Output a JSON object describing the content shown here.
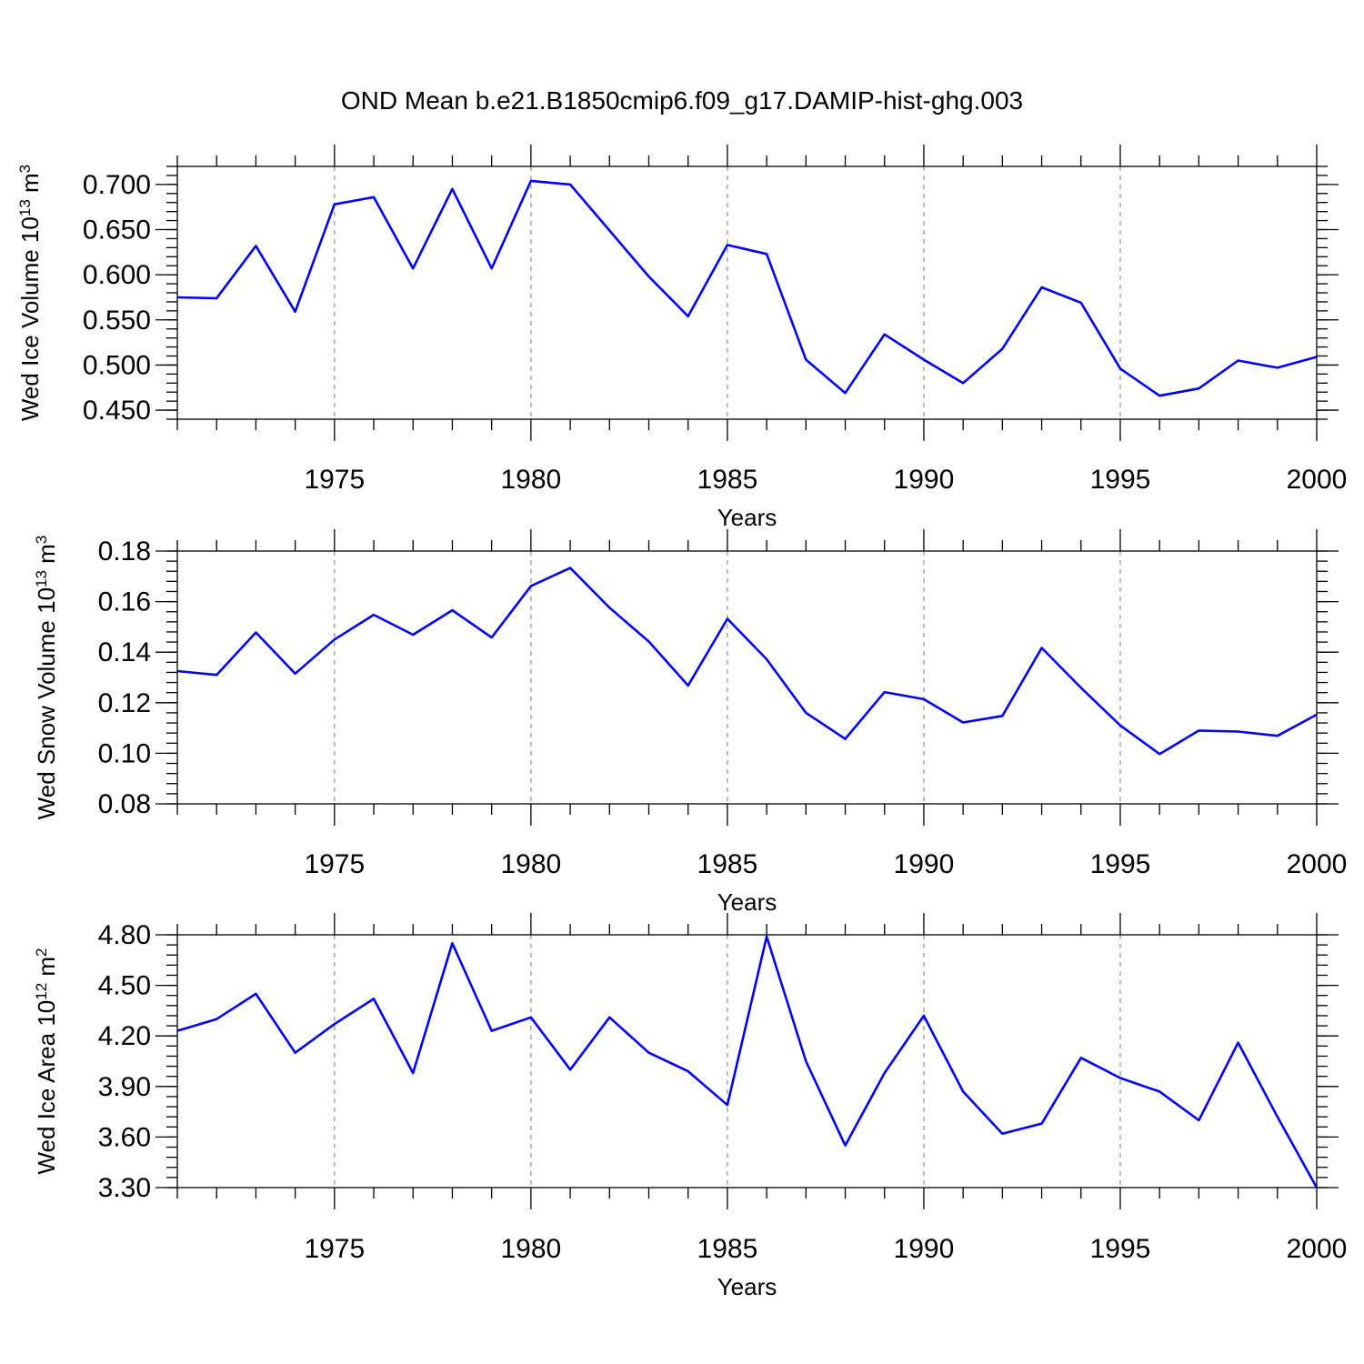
{
  "title": "OND Mean b.e21.B1850cmip6.f09_g17.DAMIP-hist-ghg.003",
  "chart_data": [
    {
      "type": "line",
      "ylabel": "Wed Ice Volume 10",
      "ylabel_exp": "13",
      "ylabel_unit": " m",
      "ylabel_unit_exp": "3",
      "xlabel": "Years",
      "xlim": [
        1971,
        2000
      ],
      "ylim": [
        0.44,
        0.72
      ],
      "yticks": [
        0.45,
        0.5,
        0.55,
        0.6,
        0.65,
        0.7
      ],
      "ytick_labels": [
        "0.450",
        "0.500",
        "0.550",
        "0.600",
        "0.650",
        "0.700"
      ],
      "xticks": [
        1975,
        1980,
        1985,
        1990,
        1995,
        2000
      ],
      "xtick_labels": [
        "1975",
        "1980",
        "1985",
        "1990",
        "1995",
        "2000"
      ],
      "grid": "x dashed",
      "color": "#0000ff",
      "x": [
        1971,
        1972,
        1973,
        1974,
        1975,
        1976,
        1977,
        1978,
        1979,
        1980,
        1981,
        1982,
        1983,
        1984,
        1985,
        1986,
        1987,
        1988,
        1989,
        1990,
        1991,
        1992,
        1993,
        1994,
        1995,
        1996,
        1997,
        1998,
        1999,
        2000
      ],
      "y": [
        0.575,
        0.574,
        0.632,
        0.559,
        0.678,
        0.686,
        0.607,
        0.695,
        0.607,
        0.704,
        0.7,
        0.649,
        0.598,
        0.554,
        0.633,
        0.623,
        0.506,
        0.469,
        0.534,
        0.506,
        0.48,
        0.518,
        0.586,
        0.569,
        0.496,
        0.466,
        0.474,
        0.505,
        0.497,
        0.509
      ]
    },
    {
      "type": "line",
      "ylabel": "Wed Snow Volume 10",
      "ylabel_exp": "13",
      "ylabel_unit": " m",
      "ylabel_unit_exp": "3",
      "xlabel": "Years",
      "xlim": [
        1971,
        2000
      ],
      "ylim": [
        0.08,
        0.18
      ],
      "yticks": [
        0.08,
        0.1,
        0.12,
        0.14,
        0.16,
        0.18
      ],
      "ytick_labels": [
        "0.08",
        "0.10",
        "0.12",
        "0.14",
        "0.16",
        "0.18"
      ],
      "xticks": [
        1975,
        1980,
        1985,
        1990,
        1995,
        2000
      ],
      "xtick_labels": [
        "1975",
        "1980",
        "1985",
        "1990",
        "1995",
        "2000"
      ],
      "grid": "x dashed",
      "color": "#0000ff",
      "x": [
        1971,
        1972,
        1973,
        1974,
        1975,
        1976,
        1977,
        1978,
        1979,
        1980,
        1981,
        1982,
        1983,
        1984,
        1985,
        1986,
        1987,
        1988,
        1989,
        1990,
        1991,
        1992,
        1993,
        1994,
        1995,
        1996,
        1997,
        1998,
        1999,
        2000
      ],
      "y": [
        0.1325,
        0.131,
        0.1478,
        0.1315,
        0.145,
        0.1548,
        0.1469,
        0.1566,
        0.1458,
        0.1662,
        0.1733,
        0.1576,
        0.1442,
        0.1268,
        0.1532,
        0.1372,
        0.116,
        0.1057,
        0.1242,
        0.1214,
        0.1122,
        0.1148,
        0.1417,
        0.1259,
        0.111,
        0.0997,
        0.109,
        0.1086,
        0.1069,
        0.1153
      ]
    },
    {
      "type": "line",
      "ylabel": "Wed Ice Area 10",
      "ylabel_exp": "12",
      "ylabel_unit": " m",
      "ylabel_unit_exp": "2",
      "xlabel": "Years",
      "xlim": [
        1971,
        2000
      ],
      "ylim": [
        3.3,
        4.8
      ],
      "yticks": [
        3.3,
        3.6,
        3.9,
        4.2,
        4.5,
        4.8
      ],
      "ytick_labels": [
        "3.30",
        "3.60",
        "3.90",
        "4.20",
        "4.50",
        "4.80"
      ],
      "xticks": [
        1975,
        1980,
        1985,
        1990,
        1995,
        2000
      ],
      "xtick_labels": [
        "1975",
        "1980",
        "1985",
        "1990",
        "1995",
        "2000"
      ],
      "grid": "x dashed",
      "color": "#0000ff",
      "x": [
        1971,
        1972,
        1973,
        1974,
        1975,
        1976,
        1977,
        1978,
        1979,
        1980,
        1981,
        1982,
        1983,
        1984,
        1985,
        1986,
        1987,
        1988,
        1989,
        1990,
        1991,
        1992,
        1993,
        1994,
        1995,
        1996,
        1997,
        1998,
        1999,
        2000
      ],
      "y": [
        4.23,
        4.3,
        4.45,
        4.1,
        4.27,
        4.42,
        3.98,
        4.75,
        4.23,
        4.31,
        4.0,
        4.31,
        4.1,
        3.99,
        3.79,
        4.79,
        4.05,
        3.55,
        3.98,
        4.32,
        3.87,
        3.62,
        3.68,
        4.07,
        3.95,
        3.87,
        3.7,
        4.16,
        3.72,
        3.3
      ]
    }
  ]
}
